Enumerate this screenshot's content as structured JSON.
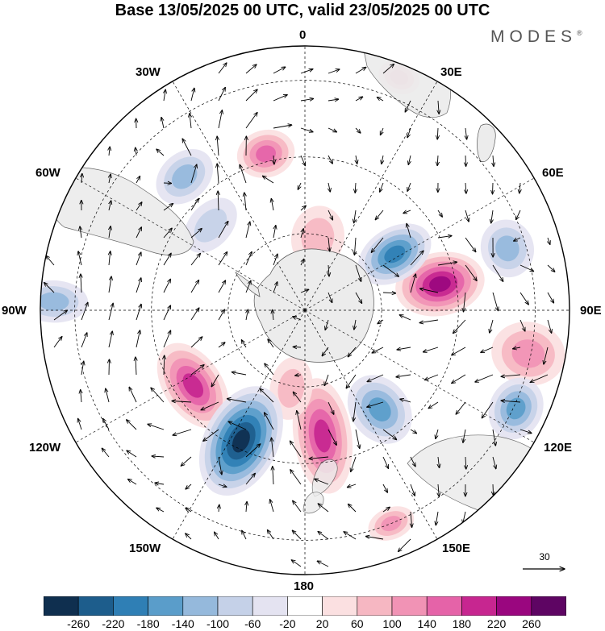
{
  "header": {
    "title": "Base 13/05/2025 00 UTC, valid 23/05/2025 00 UTC",
    "brand": "MODES",
    "brand_mark": "®"
  },
  "map": {
    "projection": "south-polar-stereographic",
    "longitude_labels": [
      "0",
      "30E",
      "60E",
      "90E",
      "120E",
      "150E",
      "180",
      "150W",
      "120W",
      "90W",
      "60W",
      "30W"
    ],
    "graticule": "dashed",
    "land_color": "#ececec",
    "reference_vector": {
      "label": "30"
    }
  },
  "colorbar": {
    "colors": [
      "#0f2f4f",
      "#1d5d8c",
      "#2f7fb5",
      "#5a9dca",
      "#95b9dc",
      "#c5d1e8",
      "#e4e3f1",
      "#ffffff",
      "#fbe0e1",
      "#f6b7c2",
      "#f193b5",
      "#e563a8",
      "#c72690",
      "#9a067f",
      "#5e0563"
    ],
    "labels": [
      "-260",
      "-220",
      "-180",
      "-140",
      "-100",
      "-60",
      "-20",
      "20",
      "60",
      "100",
      "140",
      "180",
      "220",
      "260"
    ]
  },
  "fields": {
    "negative_anomalies": [
      {
        "lon_deg": 58,
        "r": 0.4,
        "level": 3,
        "rx": 0.1,
        "ry": 0.15
      },
      {
        "lon_deg": 73,
        "r": 0.8,
        "level": 1,
        "rx": 0.11,
        "ry": 0.1
      },
      {
        "lon_deg": 143,
        "r": 0.47,
        "level": 2,
        "rx": 0.11,
        "ry": 0.14
      },
      {
        "lon_deg": 115,
        "r": 0.88,
        "level": 2,
        "rx": 0.12,
        "ry": 0.1
      },
      {
        "lon_deg": -154,
        "r": 0.55,
        "level": 5,
        "rx": 0.14,
        "ry": 0.22
      },
      {
        "lon_deg": -88,
        "r": 0.95,
        "level": 1,
        "rx": 0.08,
        "ry": 0.13
      },
      {
        "lon_deg": -42,
        "r": 0.68,
        "level": 1,
        "rx": 0.12,
        "ry": 0.09
      },
      {
        "lon_deg": -48,
        "r": 0.48,
        "level": 0,
        "rx": 0.12,
        "ry": 0.08
      }
    ],
    "positive_anomalies": [
      {
        "lon_deg": 79,
        "r": 0.52,
        "level": 4,
        "rx": 0.12,
        "ry": 0.17
      },
      {
        "lon_deg": 101,
        "r": 0.86,
        "level": 1,
        "rx": 0.12,
        "ry": 0.14
      },
      {
        "lon_deg": 172,
        "r": 0.48,
        "level": 3,
        "rx": 0.11,
        "ry": 0.22
      },
      {
        "lon_deg": -124,
        "r": 0.51,
        "level": 3,
        "rx": 0.18,
        "ry": 0.11
      },
      {
        "lon_deg": -14,
        "r": 0.61,
        "level": 2,
        "rx": 0.11,
        "ry": 0.09
      },
      {
        "lon_deg": 22,
        "r": 0.95,
        "level": 1,
        "rx": 0.08,
        "ry": 0.06
      },
      {
        "lon_deg": 158,
        "r": 0.87,
        "level": 1,
        "rx": 0.09,
        "ry": 0.06
      },
      {
        "lon_deg": -170,
        "r": 0.3,
        "level": 0,
        "rx": 0.08,
        "ry": 0.12
      },
      {
        "lon_deg": 10,
        "r": 0.28,
        "level": 0,
        "rx": 0.1,
        "ry": 0.12
      }
    ]
  }
}
